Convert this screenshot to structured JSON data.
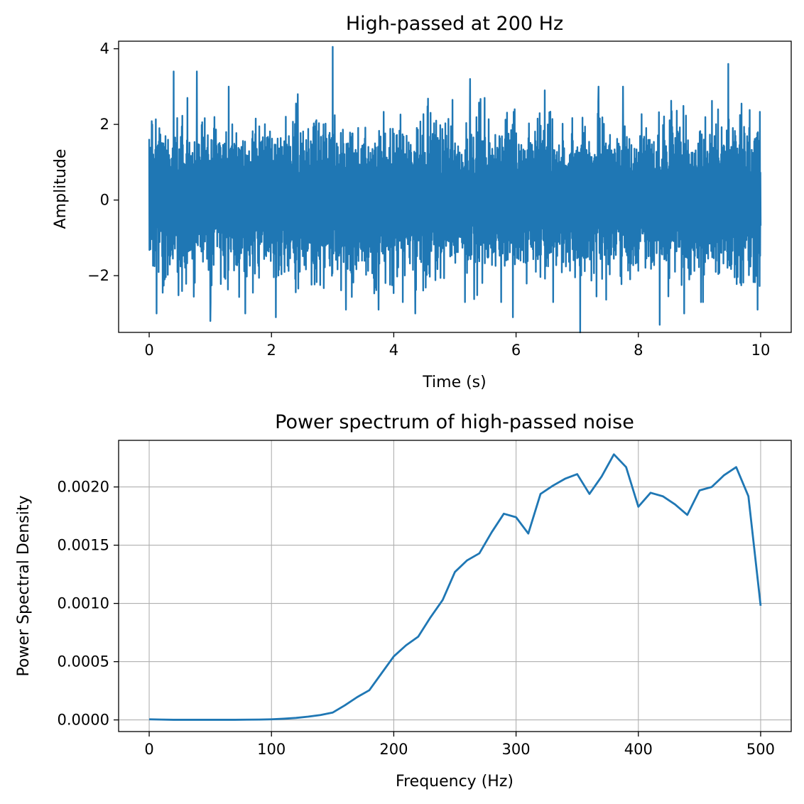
{
  "chart_data": [
    {
      "type": "line",
      "title": "High-passed at 200 Hz",
      "xlabel": "Time (s)",
      "ylabel": "Amplitude",
      "xlim": [
        -0.5,
        10.5
      ],
      "ylim": [
        -3.5,
        4.2
      ],
      "xticks": [
        0,
        2,
        4,
        6,
        8,
        10
      ],
      "xtick_labels": [
        "0",
        "2",
        "4",
        "6",
        "8",
        "10"
      ],
      "yticks": [
        -2,
        0,
        2,
        4
      ],
      "ytick_labels": [
        "−2",
        "0",
        "2",
        "4"
      ],
      "grid": false,
      "series": [
        {
          "color": "#1f77b4",
          "x_range": [
            0,
            10
          ],
          "description_stats": {
            "typical_low": -1.8,
            "typical_high": 1.8
          },
          "peaks": [
            {
              "x": 0.05,
              "y": 2.0
            },
            {
              "x": 0.12,
              "y": -3.0
            },
            {
              "x": 0.4,
              "y": 3.4
            },
            {
              "x": 0.78,
              "y": 3.4
            },
            {
              "x": 1.0,
              "y": -3.2
            },
            {
              "x": 1.3,
              "y": 3.0
            },
            {
              "x": 1.57,
              "y": -3.0
            },
            {
              "x": 2.07,
              "y": -3.1
            },
            {
              "x": 2.43,
              "y": 2.8
            },
            {
              "x": 3.0,
              "y": 4.05
            },
            {
              "x": 3.22,
              "y": -2.9
            },
            {
              "x": 3.75,
              "y": -2.9
            },
            {
              "x": 4.35,
              "y": -3.0
            },
            {
              "x": 5.25,
              "y": 3.2
            },
            {
              "x": 5.95,
              "y": -3.1
            },
            {
              "x": 6.47,
              "y": 2.9
            },
            {
              "x": 7.05,
              "y": -3.5
            },
            {
              "x": 7.35,
              "y": 3.0
            },
            {
              "x": 7.75,
              "y": 3.0
            },
            {
              "x": 8.35,
              "y": -3.3
            },
            {
              "x": 8.75,
              "y": -3.0
            },
            {
              "x": 9.47,
              "y": 3.6
            },
            {
              "x": 9.95,
              "y": -2.9
            }
          ]
        }
      ]
    },
    {
      "type": "line",
      "title": "Power spectrum of high-passed noise",
      "xlabel": "Frequency (Hz)",
      "ylabel": "Power Spectral Density",
      "xlim": [
        -25,
        525
      ],
      "ylim": [
        -0.0001,
        0.0024
      ],
      "xticks": [
        0,
        100,
        200,
        300,
        400,
        500
      ],
      "xtick_labels": [
        "0",
        "100",
        "200",
        "300",
        "400",
        "500"
      ],
      "yticks": [
        0,
        0.0005,
        0.001,
        0.0015,
        0.002
      ],
      "ytick_labels": [
        "0.0000",
        "0.0005",
        "0.0010",
        "0.0015",
        "0.0020"
      ],
      "grid": true,
      "series": [
        {
          "color": "#1f77b4",
          "x": [
            0,
            10,
            20,
            30,
            40,
            50,
            60,
            70,
            80,
            90,
            100,
            110,
            120,
            130,
            140,
            150,
            160,
            170,
            180,
            190,
            200,
            210,
            220,
            230,
            240,
            250,
            260,
            270,
            280,
            290,
            300,
            310,
            320,
            330,
            340,
            350,
            360,
            370,
            380,
            390,
            400,
            410,
            420,
            430,
            440,
            450,
            460,
            470,
            480,
            490,
            500
          ],
          "y": [
            5e-06,
            3e-06,
            1e-06,
            1e-06,
            1e-06,
            1e-06,
            1e-06,
            1e-06,
            2e-06,
            3e-06,
            5e-06,
            1e-05,
            1.7e-05,
            2.8e-05,
            4.2e-05,
            6.3e-05,
            0.000125,
            0.000195,
            0.000255,
            0.0004,
            0.000545,
            0.00064,
            0.000715,
            0.00088,
            0.00103,
            0.00127,
            0.00137,
            0.00143,
            0.00161,
            0.00177,
            0.00174,
            0.0016,
            0.00194,
            0.00201,
            0.00207,
            0.00211,
            0.00194,
            0.00209,
            0.00228,
            0.00217,
            0.00183,
            0.00195,
            0.00192,
            0.00185,
            0.00176,
            0.00197,
            0.002,
            0.0021,
            0.00217,
            0.00192,
            0.00098
          ]
        }
      ]
    }
  ]
}
